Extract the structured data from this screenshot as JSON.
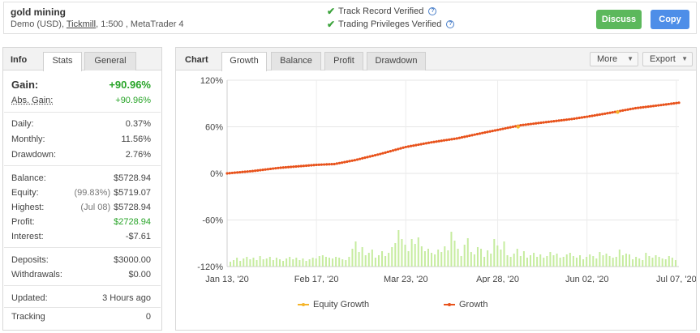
{
  "header": {
    "account_name": "gold mining",
    "meta_prefix": "Demo (USD),",
    "broker": "Tickmill",
    "meta_suffix": ", 1:500 , MetaTrader 4",
    "track_record": "Track Record Verified",
    "trading_privileges": "Trading Privileges Verified",
    "discuss_label": "Discuss",
    "copy_label": "Copy"
  },
  "info_panel": {
    "title": "Info",
    "tabs": [
      "Stats",
      "General"
    ],
    "gain_label": "Gain:",
    "gain_value": "+90.96%",
    "abs_gain_label": "Abs. Gain:",
    "abs_gain_value": "+90.96%",
    "daily_label": "Daily:",
    "daily_value": "0.37%",
    "monthly_label": "Monthly:",
    "monthly_value": "11.56%",
    "drawdown_label": "Drawdown:",
    "drawdown_value": "2.76%",
    "balance_label": "Balance:",
    "balance_value": "$5728.94",
    "equity_label": "Equity:",
    "equity_pct": "(99.83%)",
    "equity_value": "$5719.07",
    "highest_label": "Highest:",
    "highest_date": "(Jul 08)",
    "highest_value": "$5728.94",
    "profit_label": "Profit:",
    "profit_value": "$2728.94",
    "interest_label": "Interest:",
    "interest_value": "-$7.61",
    "deposits_label": "Deposits:",
    "deposits_value": "$3000.00",
    "withdrawals_label": "Withdrawals:",
    "withdrawals_value": "$0.00",
    "updated_label": "Updated:",
    "updated_value": "3 Hours ago",
    "tracking_label": "Tracking",
    "tracking_value": "0"
  },
  "chart_panel": {
    "title": "Chart",
    "tabs": [
      "Growth",
      "Balance",
      "Profit",
      "Drawdown"
    ],
    "more_label": "More",
    "export_label": "Export"
  },
  "colors": {
    "growth": "#e8521b",
    "equity_growth": "#f5b52a",
    "volume_bars": "#c6ec9f",
    "positive": "#28a428"
  },
  "chart_data": {
    "type": "line",
    "ylim": [
      -120,
      120
    ],
    "y_ticks": [
      "120%",
      "60%",
      "0%",
      "-60%",
      "-120%"
    ],
    "x_tick_labels": [
      "Jan 13, '20",
      "Feb 17, '20",
      "Mar 23, '20",
      "Apr 28, '20",
      "Jun 02, '20",
      "Jul 07, '20"
    ],
    "x_tick_days": [
      0,
      35,
      70,
      106,
      141,
      176
    ],
    "x_range_days": [
      0,
      177
    ],
    "series": [
      {
        "name": "Growth",
        "x_days": [
          0,
          10,
          20,
          35,
          42,
          50,
          60,
          70,
          80,
          90,
          100,
          106,
          115,
          125,
          135,
          141,
          150,
          160,
          170,
          177
        ],
        "values": [
          0,
          3,
          7,
          11,
          12,
          17,
          25,
          34,
          40,
          45,
          52,
          56,
          62,
          66,
          70,
          73,
          78,
          84,
          88,
          91
        ]
      },
      {
        "name": "Equity Growth",
        "x_days": [
          114,
          153
        ],
        "values": [
          60,
          79
        ]
      }
    ],
    "volume_bars": [
      6,
      8,
      11,
      7,
      10,
      12,
      9,
      11,
      8,
      13,
      9,
      10,
      12,
      8,
      11,
      9,
      7,
      10,
      12,
      9,
      11,
      8,
      10,
      7,
      9,
      11,
      10,
      13,
      14,
      12,
      11,
      10,
      12,
      11,
      9,
      8,
      12,
      22,
      31,
      18,
      24,
      14,
      17,
      21,
      11,
      14,
      19,
      13,
      17,
      24,
      29,
      45,
      34,
      27,
      19,
      34,
      28,
      36,
      25,
      19,
      22,
      17,
      15,
      21,
      18,
      25,
      20,
      43,
      32,
      22,
      13,
      27,
      35,
      18,
      15,
      24,
      22,
      12,
      20,
      16,
      34,
      26,
      21,
      31,
      14,
      12,
      16,
      22,
      13,
      19,
      11,
      14,
      17,
      12,
      15,
      11,
      13,
      18,
      14,
      16,
      11,
      12,
      15,
      17,
      13,
      11,
      14,
      9,
      12,
      15,
      13,
      10,
      18,
      14,
      16,
      13,
      11,
      12,
      21,
      14,
      16,
      15,
      9,
      12,
      10,
      8,
      17,
      13,
      11,
      14,
      12,
      10,
      9,
      13,
      11,
      8
    ]
  }
}
